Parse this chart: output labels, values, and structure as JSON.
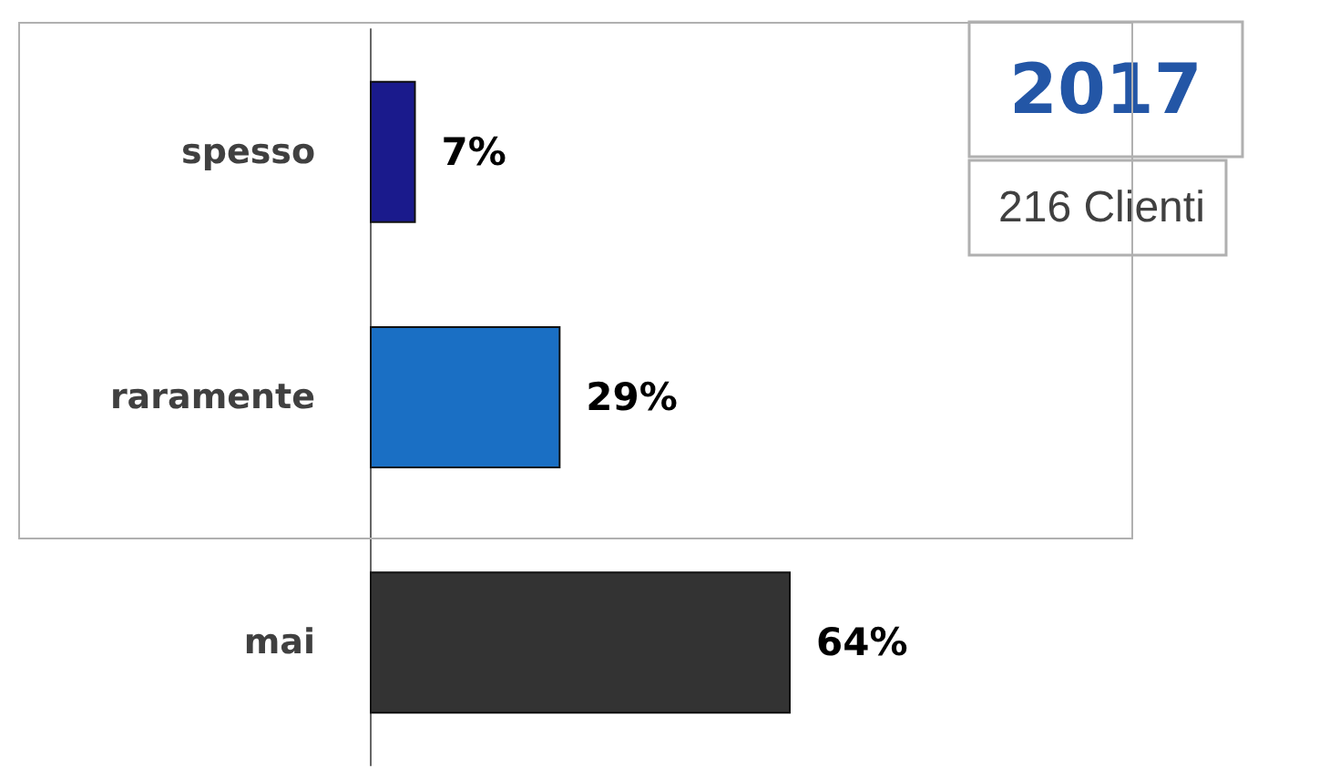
{
  "chart_data": {
    "type": "bar",
    "orientation": "horizontal",
    "title": "2017",
    "subtitle": "216 Clienti",
    "categories": [
      "spesso",
      "raramente",
      "mai"
    ],
    "values": [
      7,
      29,
      64
    ],
    "colors": [
      "#1a1a8c",
      "#1a6fc4",
      "#333333"
    ],
    "value_labels": [
      "7%",
      "29%",
      "64%"
    ]
  }
}
